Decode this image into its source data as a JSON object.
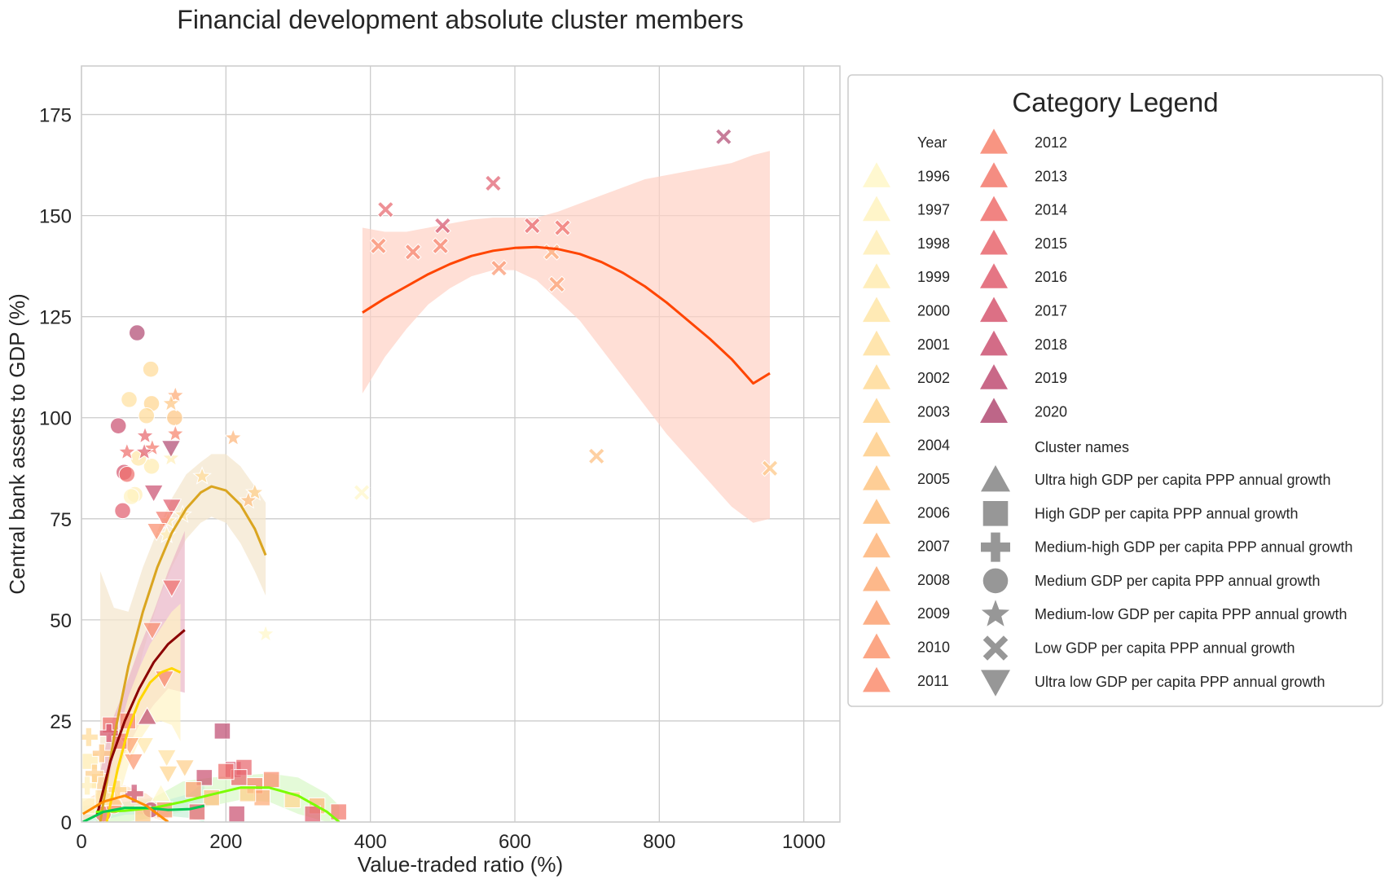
{
  "chart_data": {
    "type": "scatter",
    "title": "Financial development absolute cluster members",
    "xlabel": "Value-traded ratio (%)",
    "ylabel": "Central bank assets to GDP (%)",
    "xlim": [
      0,
      1050
    ],
    "ylim": [
      0,
      187
    ],
    "xticks": [
      0,
      200,
      400,
      600,
      800,
      1000
    ],
    "yticks": [
      0,
      25,
      50,
      75,
      100,
      125,
      150,
      175
    ],
    "grid": true,
    "legend": {
      "title": "Category Legend",
      "placement": "outside-right",
      "year_header": "Year",
      "cluster_header": "Cluster names",
      "years": [
        {
          "label": "1996",
          "color": "#fff7c8"
        },
        {
          "label": "1997",
          "color": "#fff3c0"
        },
        {
          "label": "1998",
          "color": "#ffefb8"
        },
        {
          "label": "1999",
          "color": "#ffebb0"
        },
        {
          "label": "2000",
          "color": "#ffe6a8"
        },
        {
          "label": "2001",
          "color": "#ffe1a0"
        },
        {
          "label": "2002",
          "color": "#ffdb98"
        },
        {
          "label": "2003",
          "color": "#ffd590"
        },
        {
          "label": "2004",
          "color": "#fece8a"
        },
        {
          "label": "2005",
          "color": "#fec684"
        },
        {
          "label": "2006",
          "color": "#febe7e"
        },
        {
          "label": "2007",
          "color": "#feb57a"
        },
        {
          "label": "2008",
          "color": "#fdab76"
        },
        {
          "label": "2009",
          "color": "#fca172"
        },
        {
          "label": "2010",
          "color": "#fb9770"
        },
        {
          "label": "2011",
          "color": "#fa8d6e"
        },
        {
          "label": "2012",
          "color": "#f7836c"
        },
        {
          "label": "2013",
          "color": "#f3796c"
        },
        {
          "label": "2014",
          "color": "#ee6f6c"
        },
        {
          "label": "2015",
          "color": "#e8666d"
        },
        {
          "label": "2016",
          "color": "#e05e6f"
        },
        {
          "label": "2017",
          "color": "#d65770"
        },
        {
          "label": "2018",
          "color": "#cb5272"
        },
        {
          "label": "2019",
          "color": "#bf4e73"
        },
        {
          "label": "2020",
          "color": "#b24b73"
        }
      ],
      "clusters": [
        {
          "label": "Ultra high GDP per capita PPP annual growth",
          "marker": "triangle-up"
        },
        {
          "label": "High GDP per capita PPP annual growth",
          "marker": "square"
        },
        {
          "label": "Medium-high GDP per capita PPP annual growth",
          "marker": "plus"
        },
        {
          "label": "Medium GDP per capita PPP annual growth",
          "marker": "circle"
        },
        {
          "label": "Medium-low GDP per capita PPP annual growth",
          "marker": "star"
        },
        {
          "label": "Low GDP per capita PPP annual growth",
          "marker": "x"
        },
        {
          "label": "Ultra low GDP per capita PPP annual growth",
          "marker": "triangle-down"
        }
      ]
    },
    "points": [
      {
        "cluster": "x",
        "year": "1996",
        "x": 388,
        "y": 81.5
      },
      {
        "cluster": "x",
        "year": "2005",
        "x": 953,
        "y": 87.5
      },
      {
        "cluster": "x",
        "year": "2006",
        "x": 713,
        "y": 90.5
      },
      {
        "cluster": "x",
        "year": "2009",
        "x": 658,
        "y": 133
      },
      {
        "cluster": "x",
        "year": "2010",
        "x": 578,
        "y": 137
      },
      {
        "cluster": "x",
        "year": "2008",
        "x": 651,
        "y": 141
      },
      {
        "cluster": "x",
        "year": "2011",
        "x": 411,
        "y": 142.5
      },
      {
        "cluster": "x",
        "year": "2012",
        "x": 459,
        "y": 141
      },
      {
        "cluster": "x",
        "year": "2012",
        "x": 497,
        "y": 142.5
      },
      {
        "cluster": "x",
        "year": "2015",
        "x": 421,
        "y": 151.5
      },
      {
        "cluster": "x",
        "year": "2017",
        "x": 500,
        "y": 147.5
      },
      {
        "cluster": "x",
        "year": "2016",
        "x": 570,
        "y": 158
      },
      {
        "cluster": "x",
        "year": "2015",
        "x": 624,
        "y": 147.5
      },
      {
        "cluster": "x",
        "year": "2014",
        "x": 666,
        "y": 147
      },
      {
        "cluster": "x",
        "year": "2020",
        "x": 889,
        "y": 169.5
      },
      {
        "cluster": "circle",
        "year": "2020",
        "x": 77,
        "y": 121
      },
      {
        "cluster": "circle",
        "year": "2002",
        "x": 96,
        "y": 112
      },
      {
        "cluster": "circle",
        "year": "2001",
        "x": 66,
        "y": 104.5
      },
      {
        "cluster": "circle",
        "year": "2003",
        "x": 97,
        "y": 103.5
      },
      {
        "cluster": "circle",
        "year": "2002",
        "x": 90,
        "y": 100.5
      },
      {
        "cluster": "circle",
        "year": "2005",
        "x": 129,
        "y": 100
      },
      {
        "cluster": "circle",
        "year": "2018",
        "x": 51,
        "y": 98
      },
      {
        "cluster": "circle",
        "year": "1999",
        "x": 97,
        "y": 88
      },
      {
        "cluster": "circle",
        "year": "2000",
        "x": 79,
        "y": 90
      },
      {
        "cluster": "circle",
        "year": "2017",
        "x": 59,
        "y": 86.5
      },
      {
        "cluster": "circle",
        "year": "2014",
        "x": 63,
        "y": 86
      },
      {
        "cluster": "circle",
        "year": "1998",
        "x": 74,
        "y": 81
      },
      {
        "cluster": "circle",
        "year": "1997",
        "x": 69,
        "y": 80.5
      },
      {
        "cluster": "circle",
        "year": "2016",
        "x": 57,
        "y": 77
      },
      {
        "cluster": "circle",
        "year": "2014",
        "x": 30,
        "y": 2
      },
      {
        "cluster": "circle",
        "year": "2019",
        "x": 96,
        "y": 3
      },
      {
        "cluster": "circle",
        "year": "2011",
        "x": 45,
        "y": 4
      },
      {
        "cluster": "star",
        "year": "2008",
        "x": 130,
        "y": 105.5
      },
      {
        "cluster": "star",
        "year": "2005",
        "x": 124,
        "y": 103.5
      },
      {
        "cluster": "star",
        "year": "2012",
        "x": 130,
        "y": 96
      },
      {
        "cluster": "star",
        "year": "2015",
        "x": 88,
        "y": 95.5
      },
      {
        "cluster": "star",
        "year": "2007",
        "x": 210,
        "y": 95
      },
      {
        "cluster": "star",
        "year": "2013",
        "x": 98,
        "y": 92.5
      },
      {
        "cluster": "star",
        "year": "2014",
        "x": 63,
        "y": 91.5
      },
      {
        "cluster": "star",
        "year": "2016",
        "x": 87,
        "y": 91.5
      },
      {
        "cluster": "star",
        "year": "1998",
        "x": 124,
        "y": 90
      },
      {
        "cluster": "star",
        "year": "2002",
        "x": 167,
        "y": 85.5
      },
      {
        "cluster": "star",
        "year": "2004",
        "x": 240,
        "y": 81.5
      },
      {
        "cluster": "star",
        "year": "2006",
        "x": 231,
        "y": 79.5
      },
      {
        "cluster": "star",
        "year": "2000",
        "x": 140,
        "y": 76
      },
      {
        "cluster": "star",
        "year": "1999",
        "x": 120,
        "y": 74.5
      },
      {
        "cluster": "star",
        "year": "1998",
        "x": 118,
        "y": 71
      },
      {
        "cluster": "star",
        "year": "1996",
        "x": 255,
        "y": 46.5
      },
      {
        "cluster": "triangle-down",
        "year": "2020",
        "x": 124,
        "y": 92.5
      },
      {
        "cluster": "triangle-down",
        "year": "2018",
        "x": 100,
        "y": 81.5
      },
      {
        "cluster": "triangle-down",
        "year": "2016",
        "x": 125,
        "y": 78
      },
      {
        "cluster": "triangle-down",
        "year": "2013",
        "x": 115,
        "y": 75
      },
      {
        "cluster": "triangle-down",
        "year": "2011",
        "x": 104,
        "y": 72
      },
      {
        "cluster": "triangle-down",
        "year": "2014",
        "x": 125,
        "y": 58
      },
      {
        "cluster": "triangle-down",
        "year": "2011",
        "x": 98,
        "y": 47.5
      },
      {
        "cluster": "triangle-down",
        "year": "2012",
        "x": 115,
        "y": 35.5
      },
      {
        "cluster": "triangle-down",
        "year": "2000",
        "x": 87,
        "y": 19
      },
      {
        "cluster": "triangle-down",
        "year": "2001",
        "x": 118,
        "y": 16
      },
      {
        "cluster": "triangle-down",
        "year": "2004",
        "x": 143,
        "y": 13.5
      },
      {
        "cluster": "triangle-down",
        "year": "2003",
        "x": 120,
        "y": 12
      },
      {
        "cluster": "triangle-down",
        "year": "2010",
        "x": 72,
        "y": 15
      },
      {
        "cluster": "triangle-down",
        "year": "2009",
        "x": 67,
        "y": 19
      },
      {
        "cluster": "triangle-up",
        "year": "2019",
        "x": 91,
        "y": 26
      },
      {
        "cluster": "triangle-up",
        "year": "2002",
        "x": 45,
        "y": 6
      },
      {
        "cluster": "triangle-up",
        "year": "1996",
        "x": 110,
        "y": 7
      },
      {
        "cluster": "square",
        "year": "2019",
        "x": 195,
        "y": 22.5
      },
      {
        "cluster": "square",
        "year": "2012",
        "x": 64,
        "y": 25
      },
      {
        "cluster": "square",
        "year": "2014",
        "x": 40,
        "y": 24
      },
      {
        "cluster": "square",
        "year": "2013",
        "x": 52,
        "y": 20
      },
      {
        "cluster": "square",
        "year": "2017",
        "x": 210,
        "y": 13
      },
      {
        "cluster": "square",
        "year": "2015",
        "x": 225,
        "y": 13.5
      },
      {
        "cluster": "square",
        "year": "2015",
        "x": 218,
        "y": 11
      },
      {
        "cluster": "square",
        "year": "2014",
        "x": 200,
        "y": 12.5
      },
      {
        "cluster": "square",
        "year": "2018",
        "x": 170,
        "y": 11
      },
      {
        "cluster": "square",
        "year": "2011",
        "x": 263,
        "y": 10.5
      },
      {
        "cluster": "square",
        "year": "2012",
        "x": 240,
        "y": 9
      },
      {
        "cluster": "square",
        "year": "2009",
        "x": 155,
        "y": 8
      },
      {
        "cluster": "square",
        "year": "2006",
        "x": 180,
        "y": 6
      },
      {
        "cluster": "square",
        "year": "2008",
        "x": 250,
        "y": 6
      },
      {
        "cluster": "square",
        "year": "2003",
        "x": 292,
        "y": 5.5
      },
      {
        "cluster": "square",
        "year": "2004",
        "x": 230,
        "y": 7
      },
      {
        "cluster": "square",
        "year": "2007",
        "x": 326,
        "y": 4
      },
      {
        "cluster": "square",
        "year": "2016",
        "x": 320,
        "y": 2
      },
      {
        "cluster": "square",
        "year": "2013",
        "x": 356,
        "y": 2.5
      },
      {
        "cluster": "square",
        "year": "2018",
        "x": 215,
        "y": 2
      },
      {
        "cluster": "square",
        "year": "2015",
        "x": 160,
        "y": 2.5
      },
      {
        "cluster": "square",
        "year": "2010",
        "x": 115,
        "y": 3
      },
      {
        "cluster": "square",
        "year": "2005",
        "x": 85,
        "y": 2
      },
      {
        "cluster": "square",
        "year": "2001",
        "x": 25,
        "y": 10
      },
      {
        "cluster": "square",
        "year": "1999",
        "x": 12,
        "y": 15
      },
      {
        "cluster": "square",
        "year": "2000",
        "x": 30,
        "y": 6
      },
      {
        "cluster": "square",
        "year": "1997",
        "x": 8,
        "y": 4
      },
      {
        "cluster": "plus",
        "year": "2017",
        "x": 38,
        "y": 22
      },
      {
        "cluster": "plus",
        "year": "2018",
        "x": 73,
        "y": 7
      },
      {
        "cluster": "plus",
        "year": "2002",
        "x": 10,
        "y": 21
      },
      {
        "cluster": "plus",
        "year": "2004",
        "x": 18,
        "y": 12
      },
      {
        "cluster": "plus",
        "year": "1998",
        "x": 8,
        "y": 9
      },
      {
        "cluster": "plus",
        "year": "2005",
        "x": 28,
        "y": 17
      },
      {
        "cluster": "plus",
        "year": "2003",
        "x": 50,
        "y": 8
      }
    ],
    "fits": [
      {
        "color": "#ff4500",
        "band": "#ffd2c4",
        "x": [
          389,
          420,
          450,
          480,
          510,
          540,
          570,
          600,
          630,
          660,
          690,
          720,
          750,
          780,
          810,
          840,
          870,
          900,
          930,
          953
        ],
        "y": [
          126,
          129.5,
          132.5,
          135.5,
          138,
          140,
          141.3,
          142,
          142.2,
          141.7,
          140.5,
          138.5,
          135.8,
          132.5,
          128.5,
          124,
          119.5,
          114.5,
          108.5,
          111
        ],
        "lo": [
          106,
          115,
          122,
          128,
          132,
          135,
          136.5,
          136.5,
          134,
          129,
          124,
          117,
          110,
          103,
          96,
          90,
          84,
          78,
          74,
          75
        ],
        "hi": [
          147,
          146,
          146,
          147,
          148,
          149,
          149.5,
          149.5,
          149.5,
          151,
          153,
          155,
          157,
          159,
          160,
          161,
          162,
          163,
          165,
          166
        ]
      },
      {
        "color": "#daa520",
        "band": "#f3e6cc",
        "x": [
          26,
          45,
          65,
          85,
          105,
          125,
          145,
          165,
          180,
          200,
          220,
          240,
          255
        ],
        "y": [
          0,
          21,
          38.5,
          52,
          63,
          71.5,
          77.5,
          81.5,
          83,
          82,
          78.5,
          72.5,
          66
        ],
        "lo": [
          0,
          9,
          26,
          42,
          54,
          63,
          70,
          74,
          75.5,
          74,
          69,
          62,
          56
        ],
        "hi": [
          62,
          53,
          52,
          63,
          72,
          80,
          86,
          89,
          91,
          91,
          88,
          83,
          79
        ]
      },
      {
        "color": "#8b0000",
        "band": "#e9b5c6",
        "x": [
          22,
          40,
          60,
          80,
          100,
          120,
          143
        ],
        "y": [
          2,
          15,
          25,
          33,
          39.5,
          44,
          47.5
        ],
        "lo": [
          0,
          6,
          17,
          24,
          29,
          33,
          32
        ],
        "hi": [
          9,
          24,
          33,
          43,
          52,
          62,
          72
        ]
      },
      {
        "color": "#ffd700",
        "band": "#fff3c4",
        "x": [
          35,
          50,
          65,
          80,
          95,
          110,
          125,
          137
        ],
        "y": [
          0,
          13,
          23,
          30,
          34.5,
          37,
          38,
          37
        ],
        "lo": [
          0,
          5,
          14,
          20,
          24,
          25,
          24,
          20
        ],
        "hi": [
          8,
          21,
          31,
          38,
          44,
          48,
          52,
          54
        ]
      },
      {
        "color": "#7cfc00",
        "band": "#d8f8c8",
        "x": [
          20,
          60,
          100,
          140,
          180,
          220,
          260,
          300,
          340,
          357
        ],
        "y": [
          2.5,
          2.8,
          3.5,
          5,
          6.8,
          8.5,
          8.5,
          6.5,
          2.5,
          0
        ],
        "lo": [
          0,
          0,
          1,
          2.5,
          4,
          5.5,
          5,
          2,
          0,
          0
        ],
        "hi": [
          5,
          5,
          6,
          10,
          11,
          11.5,
          12,
          11,
          7,
          4
        ]
      },
      {
        "color": "#00c853",
        "band": "#c8f0d8",
        "x": [
          2,
          30,
          60,
          90,
          120,
          150,
          170
        ],
        "y": [
          0,
          2.5,
          3.5,
          3.5,
          3,
          3.2,
          4
        ],
        "lo": [
          0,
          0.5,
          1.8,
          2,
          1.5,
          1,
          0
        ],
        "hi": [
          4,
          4.5,
          5,
          5,
          5.5,
          7,
          10
        ]
      },
      {
        "color": "#ff8c00",
        "band": "#ffe0c0",
        "x": [
          2,
          30,
          60,
          90,
          120
        ],
        "y": [
          2,
          5,
          6.5,
          4,
          0
        ],
        "lo": [
          0,
          2.5,
          4,
          1.5,
          0
        ],
        "hi": [
          5,
          8,
          9,
          7,
          3
        ]
      }
    ]
  }
}
